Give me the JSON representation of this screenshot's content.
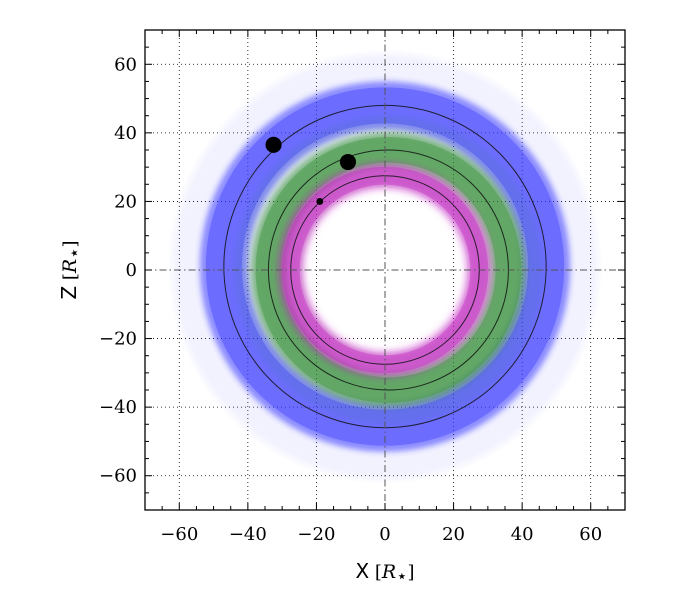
{
  "chart_data": {
    "type": "scatter",
    "title": "",
    "xlabel": {
      "var": "X",
      "unit_open": " [",
      "unit": "R",
      "unit_sub": "⋆",
      "unit_close": "]"
    },
    "ylabel": {
      "var": "Z",
      "unit_open": " [",
      "unit": "R",
      "unit_sub": "⋆",
      "unit_close": "]"
    },
    "xlim": [
      -70,
      70
    ],
    "ylim": [
      -70,
      70
    ],
    "xticks": [
      -60,
      -40,
      -20,
      0,
      20,
      40,
      60
    ],
    "yticks": [
      -60,
      -40,
      -20,
      0,
      20,
      40,
      60
    ],
    "xticklabels": [
      "−60",
      "−40",
      "−20",
      "0",
      "20",
      "40",
      "60"
    ],
    "yticklabels": [
      "−60",
      "−40",
      "−20",
      "0",
      "20",
      "40",
      "60"
    ],
    "minor_tick_step": 5,
    "grid": true,
    "grid_style": "dotted",
    "origin_lines": "dash-dot",
    "series": [
      {
        "color": "#3333ff",
        "orbit": {
          "cx": 0,
          "cy": 1,
          "r": 47
        },
        "band_width": 14,
        "halo_width": 30,
        "planet": {
          "x": -32.5,
          "y": 36.5,
          "size": 7
        }
      },
      {
        "color": "#2e8b2e",
        "orbit": {
          "cx": 1,
          "cy": 0,
          "r": 35
        },
        "band_width": 10,
        "halo_width": 20,
        "planet": {
          "x": -10.8,
          "y": 31.5,
          "size": 7
        }
      },
      {
        "color": "#c020c0",
        "orbit": {
          "cx": 0,
          "cy": 0,
          "r": 27.5
        },
        "band_width": 7,
        "halo_width": 10,
        "planet": {
          "x": -19,
          "y": 20,
          "size": 3
        }
      }
    ]
  }
}
